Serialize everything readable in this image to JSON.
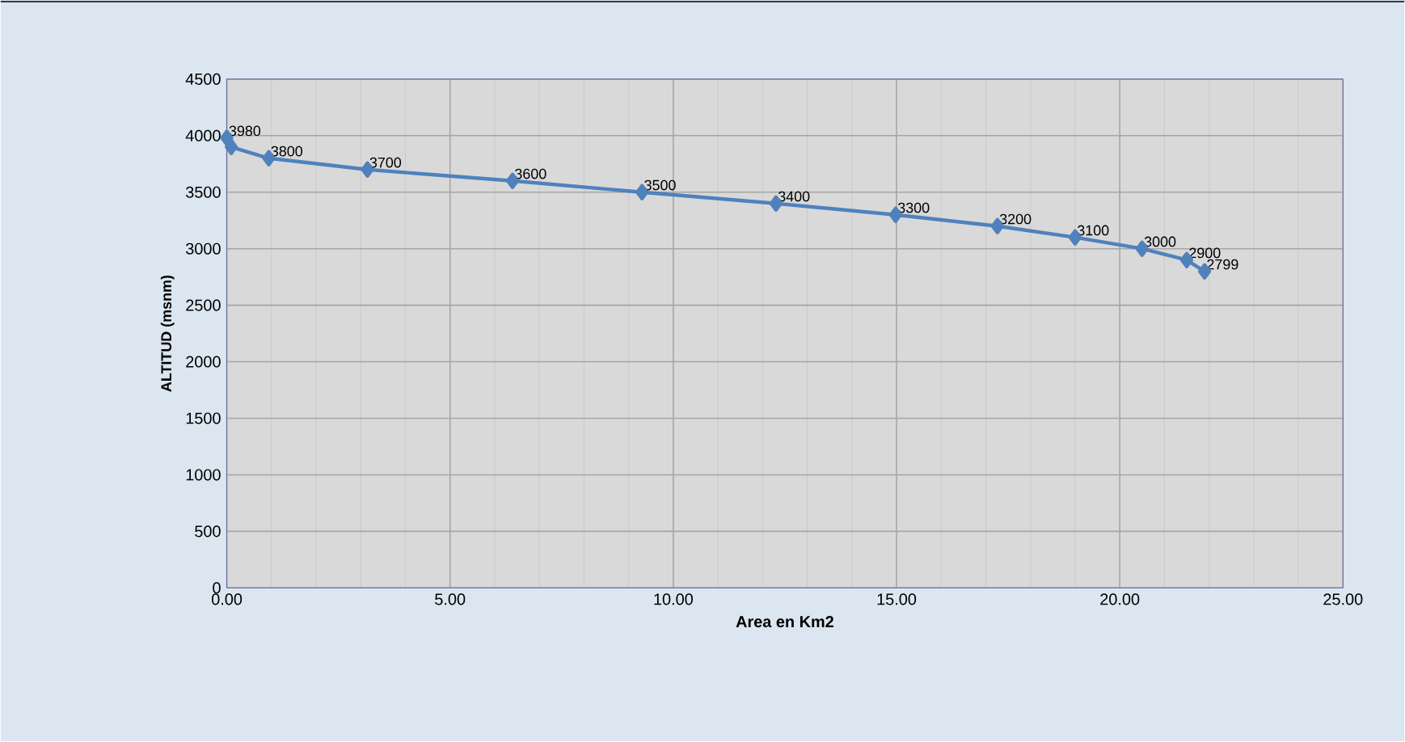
{
  "chart_data": {
    "type": "line",
    "xlabel": "Area en Km2",
    "ylabel": "ALTITUD (msnm)",
    "series": [
      {
        "color": "#4f81bd",
        "x": [
          0,
          0.1,
          0.94,
          3.15,
          6.4,
          9.3,
          12.3,
          14.98,
          17.26,
          19.0,
          20.5,
          21.5,
          21.9
        ],
        "values": [
          3980,
          3900,
          3800,
          3700,
          3600,
          3500,
          3400,
          3300,
          3200,
          3100,
          3000,
          2900,
          2799
        ],
        "value_labels": [
          "3980",
          null,
          "3800",
          "3700",
          "3600",
          "3500",
          "3400",
          "3300",
          "3200",
          "3100",
          "3000",
          "2900",
          "2799"
        ]
      }
    ],
    "xlim": [
      0,
      25
    ],
    "ylim": [
      0,
      4500
    ],
    "xticks": [
      {
        "value": 0,
        "label": "0.00"
      },
      {
        "value": 5,
        "label": "5.00"
      },
      {
        "value": 10,
        "label": "10.00"
      },
      {
        "value": 15,
        "label": "15.00"
      },
      {
        "value": 20,
        "label": "20.00"
      },
      {
        "value": 25,
        "label": "25.00"
      }
    ],
    "yticks": [
      0,
      500,
      1000,
      1500,
      2000,
      2500,
      3000,
      3500,
      4000,
      4500
    ],
    "grid": true,
    "marker": "diamond",
    "line_style": "solid"
  }
}
